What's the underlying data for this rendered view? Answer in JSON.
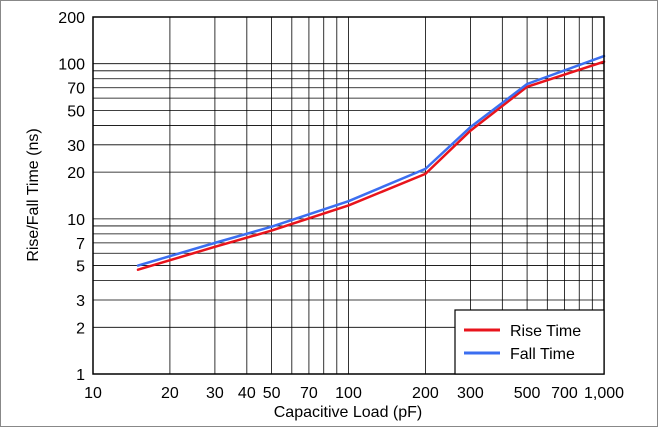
{
  "chart_data": {
    "type": "line",
    "xscale": "log",
    "yscale": "log",
    "xlim": [
      10,
      1000
    ],
    "ylim": [
      1,
      200
    ],
    "xlabel": "Capacitive Load (pF)",
    "ylabel": "Rise/Fall Time (ns)",
    "x_ticks": [
      {
        "v": 10,
        "label": "10"
      },
      {
        "v": 20,
        "label": "20"
      },
      {
        "v": 30,
        "label": "30"
      },
      {
        "v": 40,
        "label": "40"
      },
      {
        "v": 50,
        "label": "50"
      },
      {
        "v": 70,
        "label": "70"
      },
      {
        "v": 100,
        "label": "100"
      },
      {
        "v": 200,
        "label": "200"
      },
      {
        "v": 300,
        "label": "300"
      },
      {
        "v": 500,
        "label": "500"
      },
      {
        "v": 700,
        "label": "700"
      },
      {
        "v": 1000,
        "label": "1,000"
      }
    ],
    "y_ticks": [
      {
        "v": 1,
        "label": "1"
      },
      {
        "v": 2,
        "label": "2"
      },
      {
        "v": 3,
        "label": "3"
      },
      {
        "v": 5,
        "label": "5"
      },
      {
        "v": 7,
        "label": "7"
      },
      {
        "v": 10,
        "label": "10"
      },
      {
        "v": 20,
        "label": "20"
      },
      {
        "v": 30,
        "label": "30"
      },
      {
        "v": 50,
        "label": "50"
      },
      {
        "v": 70,
        "label": "70"
      },
      {
        "v": 100,
        "label": "100"
      },
      {
        "v": 200,
        "label": "200"
      }
    ],
    "grid": true,
    "legend_position": "bottom-right",
    "series": [
      {
        "name": "Rise Time",
        "color": "#e8141c",
        "x": [
          15,
          30,
          50,
          100,
          200,
          300,
          500,
          1000
        ],
        "y": [
          4.7,
          6.6,
          8.4,
          12.2,
          19.5,
          37,
          71,
          103
        ]
      },
      {
        "name": "Fall Time",
        "color": "#3b6ef0",
        "x": [
          15,
          30,
          50,
          100,
          200,
          300,
          500,
          1000
        ],
        "y": [
          5.0,
          7.0,
          8.9,
          13.0,
          21.0,
          39,
          74,
          112
        ]
      }
    ]
  }
}
